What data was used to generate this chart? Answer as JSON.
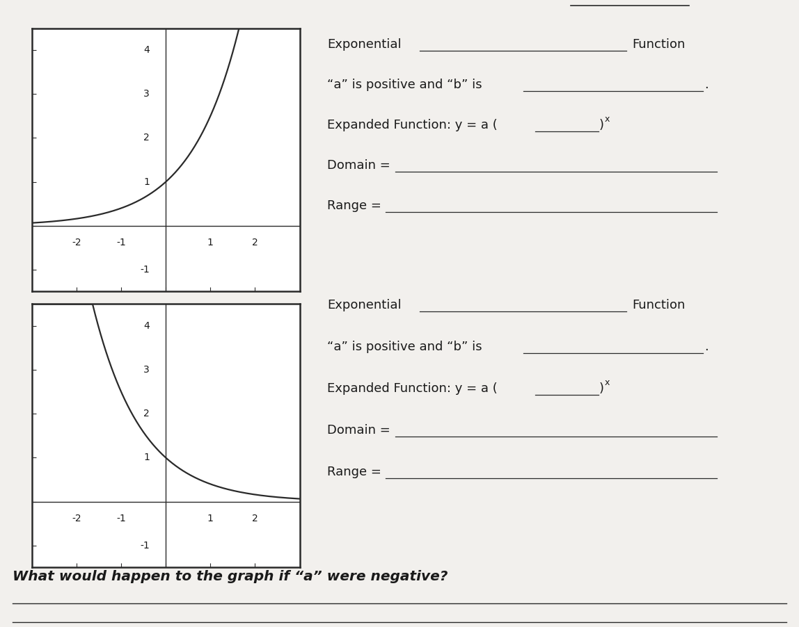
{
  "bg_paper": "#f2f0ed",
  "bg_corner": "#aaaaaa",
  "graph_bg": "#ffffff",
  "line_color": "#2a2a2a",
  "text_color": "#1a1a1a",
  "graph1_xlim": [
    -3,
    3
  ],
  "graph1_ylim": [
    -1.5,
    4.5
  ],
  "graph1_base": 2.5,
  "graph2_xlim": [
    -3,
    3
  ],
  "graph2_ylim": [
    -1.5,
    4.5
  ],
  "graph2_base": 0.4,
  "xticks": [
    -2,
    -1,
    0,
    1,
    2
  ],
  "yticks": [
    -1,
    0,
    1,
    2,
    3,
    4
  ],
  "bottom_question": "What would happen to the graph if “a” were negative?"
}
